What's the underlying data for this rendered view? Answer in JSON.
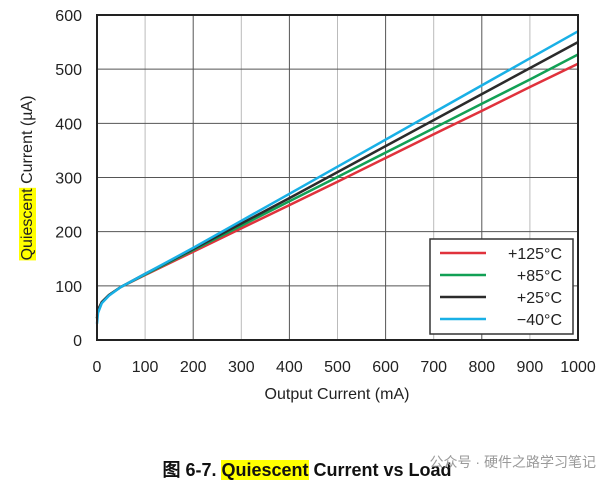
{
  "chart_data": {
    "type": "line",
    "title": "",
    "xlabel": "Output Current (mA)",
    "ylabel_highlight": "Quiescent",
    "ylabel_rest": " Current (µA)",
    "xlim": [
      0,
      1000
    ],
    "ylim": [
      0,
      600
    ],
    "xticks": [
      0,
      100,
      200,
      300,
      400,
      500,
      600,
      700,
      800,
      900,
      1000
    ],
    "yticks": [
      0,
      100,
      200,
      300,
      400,
      500,
      600
    ],
    "grid": true,
    "legend_position": "bottom-right",
    "x": [
      0,
      2,
      10,
      25,
      50,
      100,
      200,
      300,
      400,
      500,
      600,
      700,
      800,
      900,
      1000
    ],
    "series": [
      {
        "name": "+125°C",
        "color": "#e0323c",
        "values": [
          45,
          56,
          70,
          83,
          98,
          120,
          163,
          206,
          249,
          292,
          336,
          380,
          423,
          467,
          510
        ]
      },
      {
        "name": "+85°C",
        "color": "#12a055",
        "values": [
          40,
          55,
          70,
          83,
          98,
          121,
          166,
          211,
          256,
          301,
          346,
          391,
          436,
          481,
          527
        ]
      },
      {
        "name": "+25°C",
        "color": "#2b2b2b",
        "values": [
          40,
          55,
          70,
          83,
          98,
          122,
          168,
          215,
          262,
          310,
          358,
          406,
          454,
          502,
          550
        ]
      },
      {
        "name": "−40°C",
        "color": "#19b0e6",
        "values": [
          30,
          50,
          68,
          82,
          98,
          122,
          170,
          220,
          270,
          320,
          370,
          420,
          470,
          520,
          570
        ]
      }
    ]
  },
  "caption": {
    "prefix": "图 6-7. ",
    "highlight": "Quiescent",
    "rest": " Current vs Load"
  },
  "watermark": "公众号 · 硬件之路学习笔记"
}
